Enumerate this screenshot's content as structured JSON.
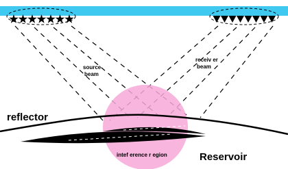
{
  "source_beam": [
    "source",
    "beam"
  ],
  "receiver_beam": [
    "receiv er",
    "beam"
  ],
  "reflector": "reflector",
  "reservoir": "Reservoir",
  "interference_region": "intef erence r egion"
}
